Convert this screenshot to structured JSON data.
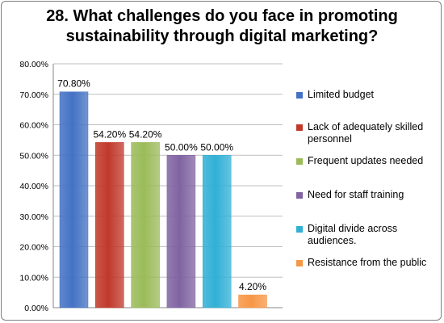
{
  "chart_data": {
    "type": "bar",
    "title": "28. What challenges do you face in promoting sustainability through digital marketing?",
    "categories": [
      "Limited budget",
      "Lack of adequately skilled personnel",
      "Frequent updates needed",
      "Need for staff training",
      "Digital divide across audiences.",
      "Resistance from the public"
    ],
    "values": [
      70.8,
      54.2,
      54.2,
      50.0,
      50.0,
      4.2
    ],
    "value_labels": [
      "70.80%",
      "54.20%",
      "54.20%",
      "50.00%",
      "50.00%",
      "4.20%"
    ],
    "colors": [
      "#4472c4",
      "#c0392b",
      "#9bbb59",
      "#8064a2",
      "#31b0d5",
      "#f79646"
    ],
    "ylim": [
      0,
      80
    ],
    "yticks": [
      0,
      10,
      20,
      30,
      40,
      50,
      60,
      70,
      80
    ],
    "ytick_labels": [
      "0.00%",
      "10.00%",
      "20.00%",
      "30.00%",
      "40.00%",
      "50.00%",
      "60.00%",
      "70.00%",
      "80.00%"
    ],
    "grid": true,
    "legend": "right",
    "xlabel": "",
    "ylabel": ""
  }
}
